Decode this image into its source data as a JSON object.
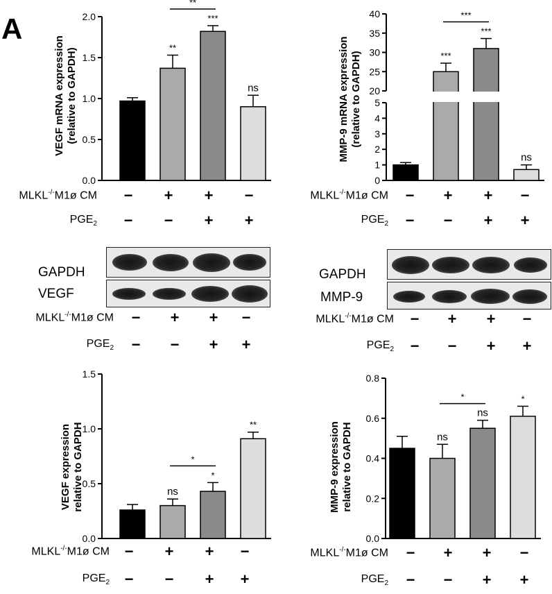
{
  "panel_letter": "A",
  "conditions": {
    "mlkl_label": {
      "prefix": "MLKL",
      "sup": "-/-",
      "suffix": "M1ø CM"
    },
    "pge_label": {
      "prefix": "PGE",
      "sub": "2"
    },
    "mlkl_signs": [
      "−",
      "+",
      "+",
      "−"
    ],
    "pge_signs": [
      "−",
      "−",
      "+",
      "+"
    ]
  },
  "colors": {
    "bars": [
      "#000000",
      "#aaaaaa",
      "#8a8a8a",
      "#dddddd"
    ]
  },
  "charts": {
    "c1": {
      "ylabel": [
        "VEGF mRNA expression",
        "(relative to GAPDH)"
      ]
    },
    "c2": {
      "ylabel": [
        "MMP-9 mRNA expression",
        "(relative to GAPDH)"
      ]
    },
    "c3": {
      "ylabel": [
        "VEGF  expression",
        "relative to GAPDH"
      ]
    },
    "c4": {
      "ylabel": [
        "MMP-9 expression",
        "relative to GAPDH"
      ]
    }
  },
  "blots": {
    "left": {
      "top_label": "GAPDH",
      "bottom_label": "VEGF"
    },
    "right": {
      "top_label": "GAPDH",
      "bottom_label": "MMP-9"
    }
  },
  "chart_data": [
    {
      "type": "bar",
      "id": "c1",
      "categories": [
        "1",
        "2",
        "3",
        "4"
      ],
      "values": [
        0.97,
        1.37,
        1.82,
        0.9
      ],
      "errors": [
        0.04,
        0.16,
        0.07,
        0.14
      ],
      "ylim": [
        0,
        2.0
      ],
      "yticks": [
        "0.0",
        "0.5",
        "1.0",
        "1.5",
        "2.0"
      ],
      "sig": [
        "",
        "**",
        "***",
        "ns"
      ],
      "bracket": {
        "from": 1,
        "to": 2,
        "label": "**"
      }
    },
    {
      "type": "bar",
      "id": "c2",
      "categories": [
        "1",
        "2",
        "3",
        "4"
      ],
      "values": [
        1.0,
        25.0,
        31.0,
        0.7
      ],
      "errors": [
        0.15,
        2.2,
        2.6,
        0.3
      ],
      "axis_break": {
        "lower": [
          0,
          5
        ],
        "upper": [
          20,
          40
        ]
      },
      "yticks_lower": [
        "0",
        "1",
        "2",
        "3",
        "4",
        "5"
      ],
      "yticks_upper": [
        "20",
        "25",
        "30",
        "35",
        "40"
      ],
      "sig": [
        "",
        "***",
        "***",
        "ns"
      ],
      "bracket": {
        "from": 1,
        "to": 2,
        "label": "***"
      }
    },
    {
      "type": "bar",
      "id": "c3",
      "categories": [
        "1",
        "2",
        "3",
        "4"
      ],
      "values": [
        0.26,
        0.3,
        0.43,
        0.91
      ],
      "errors": [
        0.05,
        0.06,
        0.08,
        0.06
      ],
      "ylim": [
        0,
        1.5
      ],
      "yticks": [
        "0.0",
        "0.5",
        "1.0",
        "1.5"
      ],
      "sig": [
        "",
        "ns",
        "*",
        "**"
      ],
      "bracket": {
        "from": 1,
        "to": 2,
        "label": "*"
      }
    },
    {
      "type": "bar",
      "id": "c4",
      "categories": [
        "1",
        "2",
        "3",
        "4"
      ],
      "values": [
        0.45,
        0.4,
        0.55,
        0.61
      ],
      "errors": [
        0.06,
        0.07,
        0.04,
        0.05
      ],
      "ylim": [
        0,
        0.8
      ],
      "yticks": [
        "0.0",
        "0.2",
        "0.4",
        "0.6",
        "0.8"
      ],
      "sig": [
        "",
        "ns",
        "ns",
        "*"
      ],
      "bracket": {
        "from": 1,
        "to": 2,
        "label": "*"
      }
    }
  ]
}
